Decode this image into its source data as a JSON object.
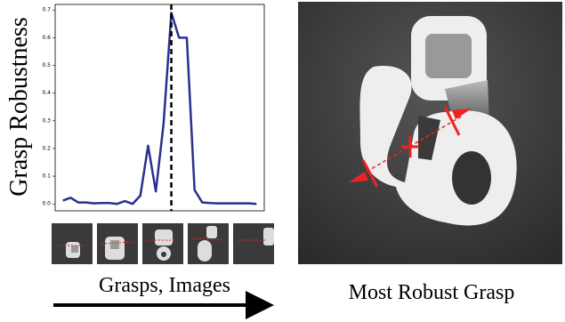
{
  "chart_data": {
    "type": "line",
    "y_label": "Grasp Robustness",
    "x": [
      0,
      1,
      2,
      3,
      4,
      5,
      6,
      7,
      8,
      9,
      10,
      11,
      12,
      13,
      14,
      15,
      16,
      17,
      18,
      19,
      20,
      21,
      22,
      23,
      24,
      25
    ],
    "series": [
      {
        "color": "#2b2f8f",
        "values": [
          0.012,
          0.022,
          0.005,
          0.005,
          0.002,
          0.003,
          0.003,
          0.0,
          0.01,
          0.0,
          0.03,
          0.21,
          0.045,
          0.29,
          0.69,
          0.6,
          0.6,
          0.05,
          0.005,
          0.003,
          0.002,
          0.002,
          0.002,
          0.002,
          0.002,
          0.0
        ]
      }
    ],
    "marker_x": 14,
    "xlim": [
      -1,
      26
    ],
    "ylim": [
      -0.025,
      0.72
    ],
    "yticks": [
      {
        "value": 0,
        "label": "0.0"
      },
      0.1,
      0.2,
      0.3,
      0.4,
      0.5,
      0.6,
      0.7
    ]
  },
  "x_caption": "Grasps, Images",
  "image_caption": "Most Robust Grasp"
}
